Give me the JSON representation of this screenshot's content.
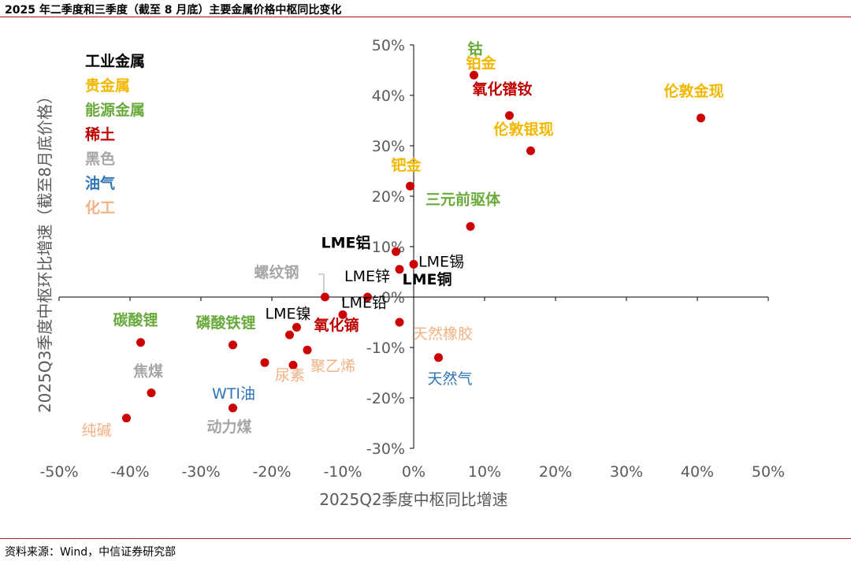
{
  "title": "2025 年二季度和三季度（截至 8 月底）主要金属价格中枢同比变化",
  "source": "资料来源：Wind，中信证券研究部",
  "chart_data": {
    "type": "scatter",
    "xlabel": "2025Q2季度中枢同比增速",
    "ylabel": "2025Q3季度中枢环比增速（截至8月底价格）",
    "xlim": [
      -50,
      50
    ],
    "ylim": [
      -30,
      50
    ],
    "x_ticks": [
      "-50%",
      "-40%",
      "-30%",
      "-20%",
      "-10%",
      "0%",
      "10%",
      "20%",
      "30%",
      "40%",
      "50%"
    ],
    "y_ticks": [
      "50%",
      "40%",
      "30%",
      "20%",
      "10%",
      "0%",
      "-10%",
      "-20%",
      "-30%"
    ],
    "legend": [
      {
        "name": "工业金属",
        "color": "#000000"
      },
      {
        "name": "贵金属",
        "color": "#f2b800"
      },
      {
        "name": "能源金属",
        "color": "#6aaa3c"
      },
      {
        "name": "稀土",
        "color": "#c00000"
      },
      {
        "name": "黑色",
        "color": "#a6a6a6"
      },
      {
        "name": "油气",
        "color": "#2e75b6"
      },
      {
        "name": "化工",
        "color": "#f4b183"
      }
    ],
    "marker_color": "#cc0000",
    "points": [
      {
        "label": "钴",
        "x": 8.5,
        "y": 44,
        "category": "能源金属"
      },
      {
        "label": "铂金",
        "x": 8.5,
        "y": 44,
        "category": "贵金属"
      },
      {
        "label": "氧化镨钕",
        "x": 13.5,
        "y": 36,
        "category": "稀土"
      },
      {
        "label": "伦敦金现",
        "x": 40.5,
        "y": 35.5,
        "category": "贵金属"
      },
      {
        "label": "伦敦银现",
        "x": 16.5,
        "y": 29,
        "category": "贵金属"
      },
      {
        "label": "钯金",
        "x": -0.5,
        "y": 22,
        "category": "贵金属"
      },
      {
        "label": "三元前驱体",
        "x": 8,
        "y": 14,
        "category": "能源金属"
      },
      {
        "label": "LME铝",
        "x": -2.5,
        "y": 9,
        "category": "工业金属"
      },
      {
        "label": "LME锡",
        "x": 0,
        "y": 6.5,
        "category": "工业金属"
      },
      {
        "label": "LME锌",
        "x": -2,
        "y": 5.5,
        "category": "工业金属"
      },
      {
        "label": "LME铜",
        "x": -6.5,
        "y": 0,
        "category": "工业金属"
      },
      {
        "label": "螺纹钢",
        "x": -12.5,
        "y": 0,
        "category": "黑色"
      },
      {
        "label": "LME铅",
        "x": -10,
        "y": -3.5,
        "category": "工业金属"
      },
      {
        "label": "LME镍",
        "x": -16.5,
        "y": -6,
        "category": "工业金属"
      },
      {
        "label": "氧化镝",
        "x": -17.5,
        "y": -7.5,
        "category": "稀土"
      },
      {
        "label": "天然橡胶",
        "x": -2,
        "y": -5,
        "category": "化工"
      },
      {
        "label": "碳酸锂",
        "x": -38.5,
        "y": -9,
        "category": "能源金属"
      },
      {
        "label": "磷酸铁锂",
        "x": -25.5,
        "y": -9.5,
        "category": "能源金属"
      },
      {
        "label": "聚乙烯",
        "x": -15,
        "y": -10.5,
        "category": "化工"
      },
      {
        "label": "天然气",
        "x": 3.5,
        "y": -12,
        "category": "油气"
      },
      {
        "label": "WTI油",
        "x": -21,
        "y": -13,
        "category": "油气"
      },
      {
        "label": "尿素",
        "x": -17,
        "y": -13.5,
        "category": "化工"
      },
      {
        "label": "焦煤",
        "x": -37,
        "y": -19,
        "category": "黑色"
      },
      {
        "label": "动力煤",
        "x": -25.5,
        "y": -22,
        "category": "黑色"
      },
      {
        "label": "纯碱",
        "x": -40.5,
        "y": -24,
        "category": "化工"
      }
    ]
  }
}
